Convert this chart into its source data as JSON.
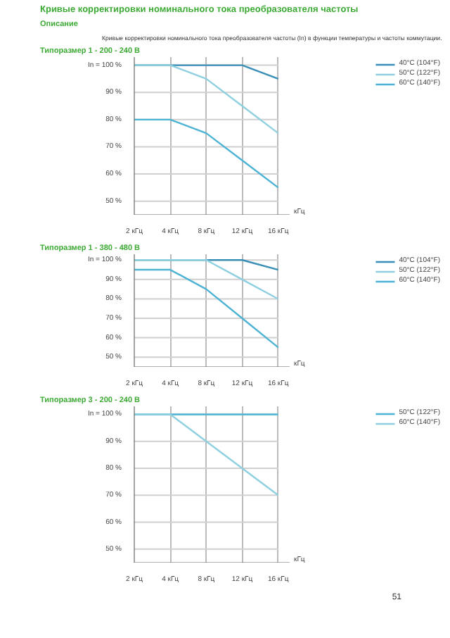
{
  "chart_data": [
    {
      "type": "line",
      "title": "Типоразмер 1 - 200 - 240 В",
      "annotations": [
        "Кривые корректировки номинального тока преобразователя частоты",
        "Описание",
        "Кривые корректировки номинального тока преобразователя частоты (In) в функции температуры и частоты коммутации."
      ],
      "xlabel": "кГц",
      "categories": [
        "2 кГц",
        "4 кГц",
        "8 кГц",
        "12 кГц",
        "16 кГц"
      ],
      "ylim": [
        45,
        103
      ],
      "yticks": [
        {
          "value": 100,
          "label": "In = 100 %"
        },
        {
          "value": 90,
          "label": "90 %"
        },
        {
          "value": 80,
          "label": "80 %"
        },
        {
          "value": 70,
          "label": "70 %"
        },
        {
          "value": 60,
          "label": "60 %"
        },
        {
          "value": 50,
          "label": "50 %"
        }
      ],
      "grid": true,
      "legend": "right",
      "marker": "none",
      "line_style": "solid",
      "series": [
        {
          "name": "40°C (104°F)",
          "color": "#3a8fb7",
          "values": [
            100,
            100,
            100,
            100,
            95
          ]
        },
        {
          "name": "50°C (122°F)",
          "color": "#8fd0e0",
          "values": [
            100,
            100,
            95,
            85,
            75
          ]
        },
        {
          "name": "60°C (140°F)",
          "color": "#4db3d4",
          "values": [
            80,
            80,
            75,
            65,
            55
          ]
        }
      ]
    },
    {
      "type": "line",
      "title": "Типоразмер 1 - 380 - 480 В",
      "xlabel": "кГц",
      "categories": [
        "2 кГц",
        "4 кГц",
        "8 кГц",
        "12 кГц",
        "16 кГц"
      ],
      "ylim": [
        45,
        103
      ],
      "yticks": [
        {
          "value": 100,
          "label": "In = 100 %"
        },
        {
          "value": 90,
          "label": "90 %"
        },
        {
          "value": 80,
          "label": "80 %"
        },
        {
          "value": 70,
          "label": "70 %"
        },
        {
          "value": 60,
          "label": "60 %"
        },
        {
          "value": 50,
          "label": "50 %"
        }
      ],
      "grid": true,
      "legend": "right",
      "marker": "none",
      "line_style": "solid",
      "series": [
        {
          "name": "40°C (104°F)",
          "color": "#3a8fb7",
          "values": [
            100,
            100,
            100,
            100,
            95
          ]
        },
        {
          "name": "50°C (122°F)",
          "color": "#8fd0e0",
          "values": [
            100,
            100,
            100,
            90,
            80
          ]
        },
        {
          "name": "60°C (140°F)",
          "color": "#4db3d4",
          "values": [
            95,
            95,
            85,
            70,
            55
          ]
        }
      ]
    },
    {
      "type": "line",
      "title": "Типоразмер 3 - 200 - 240 В",
      "annotations": [
        "51"
      ],
      "xlabel": "кГц",
      "categories": [
        "2 кГц",
        "4 кГц",
        "8 кГц",
        "12 кГц",
        "16 кГц"
      ],
      "ylim": [
        45,
        103
      ],
      "yticks": [
        {
          "value": 100,
          "label": "In = 100 %"
        },
        {
          "value": 90,
          "label": "90 %"
        },
        {
          "value": 80,
          "label": "80 %"
        },
        {
          "value": 70,
          "label": "70 %"
        },
        {
          "value": 60,
          "label": "60 %"
        },
        {
          "value": 50,
          "label": "50 %"
        }
      ],
      "grid": true,
      "legend": "right",
      "marker": "none",
      "line_style": "solid",
      "series": [
        {
          "name": "50°C (122°F)",
          "color": "#4db3d4",
          "values": [
            100,
            100,
            100,
            100,
            100
          ]
        },
        {
          "name": "60°C (140°F)",
          "color": "#8fd0e0",
          "values": [
            100,
            100,
            90,
            80,
            70
          ]
        }
      ]
    }
  ]
}
